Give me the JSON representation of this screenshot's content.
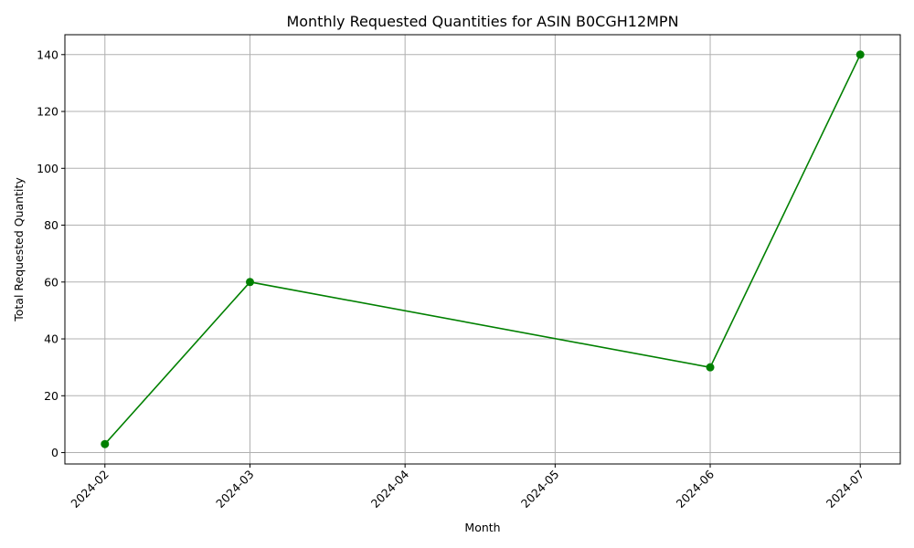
{
  "chart_data": {
    "type": "line",
    "title": "Monthly Requested Quantities for ASIN B0CGH12MPN",
    "xlabel": "Month",
    "ylabel": "Total Requested Quantity",
    "x": [
      "2024-02-01",
      "2024-03-01",
      "2024-06-01",
      "2024-07-01"
    ],
    "x_ticks": [
      "2024-02",
      "2024-03",
      "2024-04",
      "2024-05",
      "2024-06",
      "2024-07"
    ],
    "x_tick_dates": [
      "2024-02-01",
      "2024-03-01",
      "2024-04-01",
      "2024-05-01",
      "2024-06-01",
      "2024-07-01"
    ],
    "xlim": [
      "2024-01-24",
      "2024-07-09"
    ],
    "series": [
      {
        "values": [
          3,
          60,
          30,
          140
        ],
        "color": "#008000",
        "marker": "circle"
      }
    ],
    "y_ticks": [
      0,
      20,
      40,
      60,
      80,
      100,
      120,
      140
    ],
    "ylim": [
      -4,
      147
    ],
    "grid": true,
    "legend": "none"
  }
}
